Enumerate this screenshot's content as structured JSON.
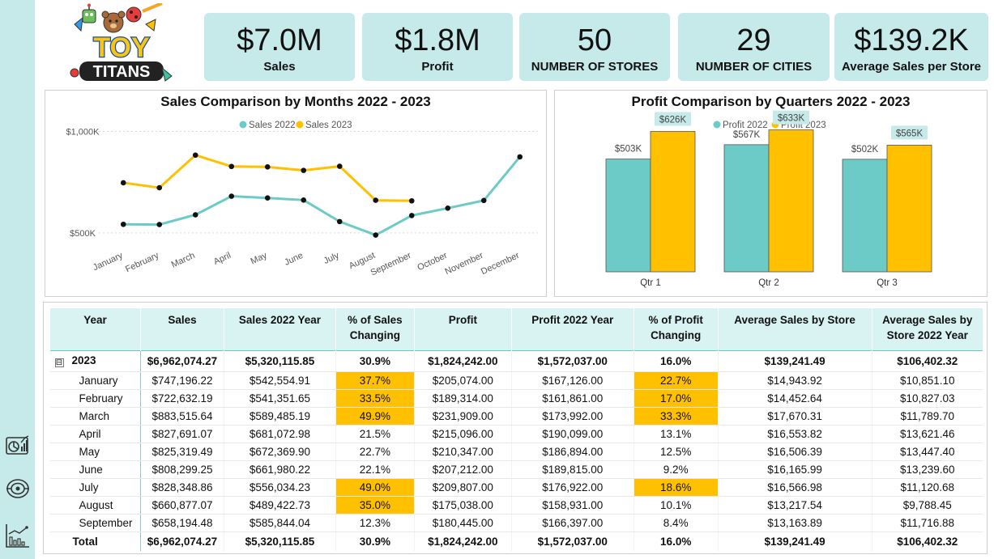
{
  "brand": {
    "line1": "TOY",
    "line2": "TITANS"
  },
  "nav": [
    {
      "icon": "chart-dashboard-icon"
    },
    {
      "icon": "target-icon"
    },
    {
      "icon": "trend-chart-icon"
    }
  ],
  "kpis": [
    {
      "value": "$7.0M",
      "label": "Sales"
    },
    {
      "value": "$1.8M",
      "label": "Profit"
    },
    {
      "value": "50",
      "label": "NUMBER OF STORES"
    },
    {
      "value": "29",
      "label": "NUMBER OF CITIES"
    },
    {
      "value": "$139.2K",
      "label": "Average Sales per Store"
    }
  ],
  "colors": {
    "teal": "#6ccbc6",
    "gold": "#ffc000",
    "kpi_bg": "#c6eaea",
    "highlight": "#ffc000"
  },
  "chart_data": [
    {
      "type": "line",
      "title": "Sales Comparison by Months 2022 - 2023",
      "categories": [
        "January",
        "February",
        "March",
        "April",
        "May",
        "June",
        "July",
        "August",
        "September",
        "October",
        "November",
        "December"
      ],
      "series": [
        {
          "name": "Sales 2022",
          "color": "#6ccbc6",
          "values": [
            542554.91,
            541351.65,
            589485.19,
            681072.98,
            672369.9,
            661980.22,
            556034.23,
            489422.73,
            585844.04,
            622000,
            660000,
            875000
          ]
        },
        {
          "name": "Sales 2023",
          "color": "#ffc000",
          "values": [
            747196.22,
            722632.19,
            883515.64,
            827691.07,
            825319.49,
            808299.25,
            828348.86,
            660877.07,
            658194.48,
            null,
            null,
            null
          ]
        }
      ],
      "y_ticks": [
        "$1,000K",
        "$500K"
      ],
      "ylim": [
        420000,
        1050000
      ],
      "legend": "top-center",
      "grid": true
    },
    {
      "type": "bar",
      "title": "Profit Comparison by Quarters 2022 - 2023",
      "categories": [
        "Qtr 1",
        "Qtr 2",
        "Qtr 3"
      ],
      "series": [
        {
          "name": "Profit 2022",
          "color": "#6ccbc6",
          "values": [
            503,
            567,
            502
          ],
          "labels": [
            "$503K",
            "$567K",
            "$502K"
          ]
        },
        {
          "name": "Profit 2023",
          "color": "#ffc000",
          "values": [
            626,
            633,
            565
          ],
          "labels": [
            "$626K",
            "$633K",
            "$565K"
          ]
        }
      ],
      "ylim": [
        0,
        700
      ],
      "legend": "top-center"
    }
  ],
  "table": {
    "columns": [
      "Year",
      "Sales",
      "Sales 2022 Year",
      "% of Sales Changing",
      "Profit",
      "Profit 2022 Year",
      "% of Profit Changing",
      "Average Sales by Store",
      "Average Sales by Store 2022 Year"
    ],
    "year_row": [
      "2023",
      "$6,962,074.27",
      "$5,320,115.85",
      "30.9%",
      "$1,824,242.00",
      "$1,572,037.00",
      "16.0%",
      "$139,241.49",
      "$106,402.32"
    ],
    "rows": [
      [
        "January",
        "$747,196.22",
        "$542,554.91",
        "37.7%",
        "$205,074.00",
        "$167,126.00",
        "22.7%",
        "$14,943.92",
        "$10,851.10"
      ],
      [
        "February",
        "$722,632.19",
        "$541,351.65",
        "33.5%",
        "$189,314.00",
        "$161,861.00",
        "17.0%",
        "$14,452.64",
        "$10,827.03"
      ],
      [
        "March",
        "$883,515.64",
        "$589,485.19",
        "49.9%",
        "$231,909.00",
        "$173,992.00",
        "33.3%",
        "$17,670.31",
        "$11,789.70"
      ],
      [
        "April",
        "$827,691.07",
        "$681,072.98",
        "21.5%",
        "$215,096.00",
        "$190,099.00",
        "13.1%",
        "$16,553.82",
        "$13,621.46"
      ],
      [
        "May",
        "$825,319.49",
        "$672,369.90",
        "22.7%",
        "$210,347.00",
        "$186,894.00",
        "12.5%",
        "$16,506.39",
        "$13,447.40"
      ],
      [
        "June",
        "$808,299.25",
        "$661,980.22",
        "22.1%",
        "$207,212.00",
        "$189,815.00",
        "9.2%",
        "$16,165.99",
        "$13,239.60"
      ],
      [
        "July",
        "$828,348.86",
        "$556,034.23",
        "49.0%",
        "$209,807.00",
        "$176,922.00",
        "18.6%",
        "$16,566.98",
        "$11,120.68"
      ],
      [
        "August",
        "$660,877.07",
        "$489,422.73",
        "35.0%",
        "$175,038.00",
        "$158,931.00",
        "10.1%",
        "$13,217.54",
        "$9,788.45"
      ],
      [
        "September",
        "$658,194.48",
        "$585,844.04",
        "12.3%",
        "$180,445.00",
        "$166,397.00",
        "8.4%",
        "$13,163.89",
        "$11,716.88"
      ]
    ],
    "highlights": [
      [
        true,
        true
      ],
      [
        true,
        true
      ],
      [
        true,
        true
      ],
      [
        false,
        false
      ],
      [
        false,
        false
      ],
      [
        false,
        false
      ],
      [
        true,
        true
      ],
      [
        true,
        false
      ],
      [
        false,
        false
      ]
    ],
    "total_row": [
      "Total",
      "$6,962,074.27",
      "$5,320,115.85",
      "30.9%",
      "$1,824,242.00",
      "$1,572,037.00",
      "16.0%",
      "$139,241.49",
      "$106,402.32"
    ],
    "expander": "⊟"
  }
}
